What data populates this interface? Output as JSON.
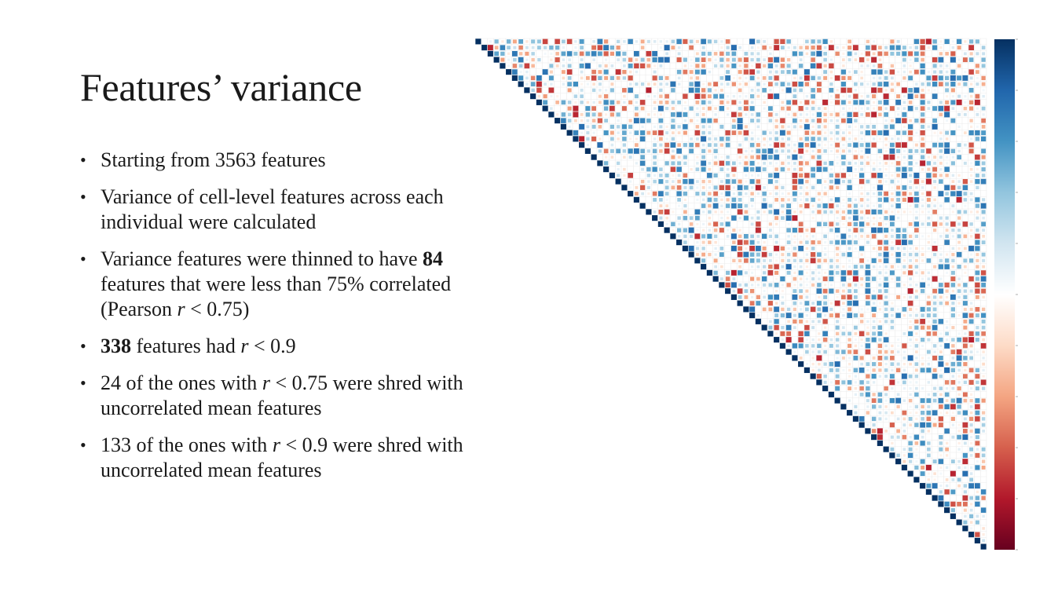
{
  "slide": {
    "title": "Features’ variance",
    "bullets": [
      {
        "parts": [
          {
            "text": "Starting from 3563 features"
          }
        ]
      },
      {
        "parts": [
          {
            "text": "Variance of cell-level features across each individual were calculated"
          }
        ]
      },
      {
        "parts": [
          {
            "text": "Variance features were thinned to have "
          },
          {
            "text": "84",
            "bold": true
          },
          {
            "text": " features that were less than 75% correlated (Pearson "
          },
          {
            "text": "r",
            "italic": true
          },
          {
            "text": " < 0.75)"
          }
        ]
      },
      {
        "parts": [
          {
            "text": "338",
            "bold": true
          },
          {
            "text": " features had "
          },
          {
            "text": "r",
            "italic": true
          },
          {
            "text": " < 0.9"
          }
        ]
      },
      {
        "parts": [
          {
            "text": "24 of the ones with "
          },
          {
            "text": "r",
            "italic": true
          },
          {
            "text": " < 0.75 were shred with uncorrelated mean features"
          }
        ]
      },
      {
        "parts": [
          {
            "text": "133 of the ones with "
          },
          {
            "text": "r",
            "italic": true
          },
          {
            "text": " < 0.9 were shred with uncorrelated mean features"
          }
        ]
      }
    ]
  },
  "chart_data": {
    "type": "heatmap",
    "matrix_shape": "upper-triangle",
    "n_features": 84,
    "diagonal_value": 1.0,
    "color_range": [
      -1,
      1
    ],
    "colormap": [
      "#67001f",
      "#b2182b",
      "#d6604d",
      "#f4a582",
      "#fddbc7",
      "#ffffff",
      "#d1e5f0",
      "#92c5de",
      "#4393c3",
      "#2166ac",
      "#053061"
    ],
    "diagonal_color": "#053061",
    "grid": true,
    "colorbar": "right"
  }
}
